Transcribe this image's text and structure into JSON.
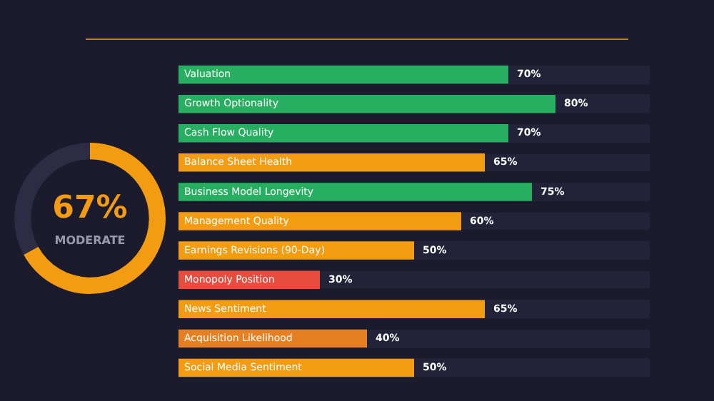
{
  "chart_data": [
    {
      "type": "donut",
      "categories": [
        null,
        null
      ],
      "values": [
        67,
        33
      ],
      "colors": [
        "#f39c12",
        "#2c2c44"
      ],
      "value_labels": [
        "67%",
        null
      ],
      "annotations": [
        "MODERATE"
      ]
    },
    {
      "type": "bar",
      "orientation": "horizontal",
      "categories": [
        "Valuation",
        "Growth Optionality",
        "Cash Flow Quality",
        "Balance Sheet Health",
        "Business Model Longevity",
        "Management Quality",
        "Earnings Revisions (90-Day)",
        "Monopoly Position",
        "News Sentiment",
        "Acquisition Likelihood",
        "Social Media Sentiment"
      ],
      "values": [
        70,
        80,
        70,
        65,
        75,
        60,
        50,
        30,
        65,
        40,
        50
      ],
      "colors": [
        "#27ae60",
        "#27ae60",
        "#27ae60",
        "#f39c12",
        "#27ae60",
        "#f39c12",
        "#f39c12",
        "#e74c3c",
        "#f39c12",
        "#e67e22",
        "#f39c12"
      ],
      "value_labels": [
        "70%",
        "80%",
        "70%",
        "65%",
        "75%",
        "60%",
        "50%",
        "30%",
        "65%",
        "40%",
        "50%"
      ],
      "xlim": [
        0,
        100
      ],
      "tick_labels": "y"
    }
  ]
}
